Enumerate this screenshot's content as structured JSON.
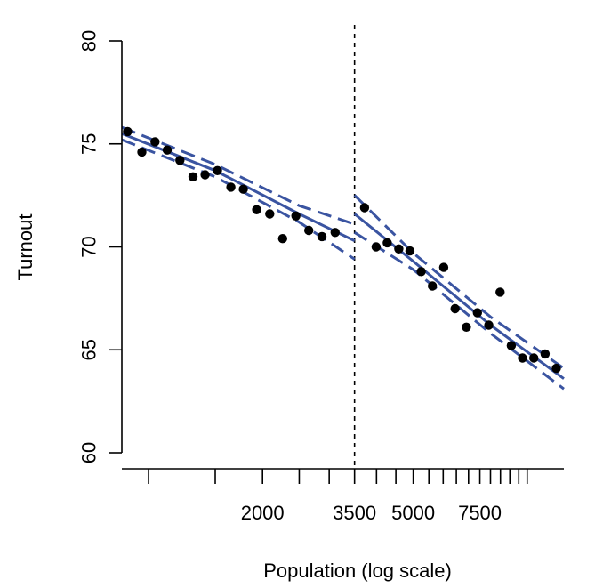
{
  "chart_data": {
    "type": "scatter",
    "title": "",
    "xlabel": "Population (log scale)",
    "ylabel": "Turnout",
    "x_scale": "log",
    "xlim": [
      850,
      12500
    ],
    "ylim": [
      59.5,
      80.5
    ],
    "x_tick_labels": [
      {
        "value": 2000,
        "label": "2000"
      },
      {
        "value": 3500,
        "label": "3500"
      },
      {
        "value": 5000,
        "label": "5000"
      },
      {
        "value": 7500,
        "label": "7500"
      }
    ],
    "x_minor_ticks": [
      1000,
      1500,
      2000,
      2500,
      3000,
      3500,
      4000,
      4500,
      5000,
      5500,
      6000,
      6500,
      7000,
      7500,
      8000,
      8500,
      9000,
      9500,
      10000
    ],
    "y_ticks": [
      60,
      65,
      70,
      75,
      80
    ],
    "y_tick_labels": [
      "60",
      "65",
      "70",
      "75",
      "80"
    ],
    "threshold": 3500,
    "point_color": "#000000",
    "line_color": "#3a54a1",
    "points": [
      {
        "x": 880,
        "y": 75.6
      },
      {
        "x": 960,
        "y": 74.6
      },
      {
        "x": 1040,
        "y": 75.1
      },
      {
        "x": 1120,
        "y": 74.7
      },
      {
        "x": 1210,
        "y": 74.2
      },
      {
        "x": 1310,
        "y": 73.4
      },
      {
        "x": 1410,
        "y": 73.5
      },
      {
        "x": 1520,
        "y": 73.7
      },
      {
        "x": 1650,
        "y": 72.9
      },
      {
        "x": 1780,
        "y": 72.8
      },
      {
        "x": 1930,
        "y": 71.8
      },
      {
        "x": 2090,
        "y": 71.6
      },
      {
        "x": 2260,
        "y": 70.4
      },
      {
        "x": 2450,
        "y": 71.5
      },
      {
        "x": 2650,
        "y": 70.8
      },
      {
        "x": 2870,
        "y": 70.5
      },
      {
        "x": 3110,
        "y": 70.7
      },
      {
        "x": 3720,
        "y": 71.9
      },
      {
        "x": 3990,
        "y": 70.0
      },
      {
        "x": 4270,
        "y": 70.2
      },
      {
        "x": 4580,
        "y": 69.9
      },
      {
        "x": 4900,
        "y": 69.8
      },
      {
        "x": 5250,
        "y": 68.8
      },
      {
        "x": 5620,
        "y": 68.1
      },
      {
        "x": 6020,
        "y": 69.0
      },
      {
        "x": 6450,
        "y": 67.0
      },
      {
        "x": 6910,
        "y": 66.1
      },
      {
        "x": 7390,
        "y": 66.8
      },
      {
        "x": 7920,
        "y": 66.2
      },
      {
        "x": 8480,
        "y": 67.8
      },
      {
        "x": 9080,
        "y": 65.2
      },
      {
        "x": 9720,
        "y": 64.6
      },
      {
        "x": 10410,
        "y": 64.6
      },
      {
        "x": 11150,
        "y": 64.8
      },
      {
        "x": 11940,
        "y": 64.1
      }
    ],
    "fit_segments": [
      {
        "name": "below-threshold",
        "fit": [
          {
            "x": 850,
            "y": 75.5
          },
          {
            "x": 1500,
            "y": 73.7
          },
          {
            "x": 2500,
            "y": 71.6
          },
          {
            "x": 3500,
            "y": 70.3
          }
        ],
        "upper": [
          {
            "x": 850,
            "y": 75.8
          },
          {
            "x": 1500,
            "y": 74.0
          },
          {
            "x": 2500,
            "y": 72.0
          },
          {
            "x": 3500,
            "y": 71.1
          }
        ],
        "lower": [
          {
            "x": 850,
            "y": 75.2
          },
          {
            "x": 1500,
            "y": 73.4
          },
          {
            "x": 2500,
            "y": 71.2
          },
          {
            "x": 3500,
            "y": 69.4
          }
        ]
      },
      {
        "name": "above-threshold",
        "fit": [
          {
            "x": 3500,
            "y": 71.6
          },
          {
            "x": 5000,
            "y": 69.3
          },
          {
            "x": 8000,
            "y": 66.2
          },
          {
            "x": 12500,
            "y": 63.6
          }
        ],
        "upper": [
          {
            "x": 3500,
            "y": 72.5
          },
          {
            "x": 5000,
            "y": 69.7
          },
          {
            "x": 8000,
            "y": 66.6
          },
          {
            "x": 12500,
            "y": 64.1
          }
        ],
        "lower": [
          {
            "x": 3500,
            "y": 70.7
          },
          {
            "x": 5000,
            "y": 68.9
          },
          {
            "x": 8000,
            "y": 65.8
          },
          {
            "x": 12500,
            "y": 63.1
          }
        ]
      }
    ]
  }
}
